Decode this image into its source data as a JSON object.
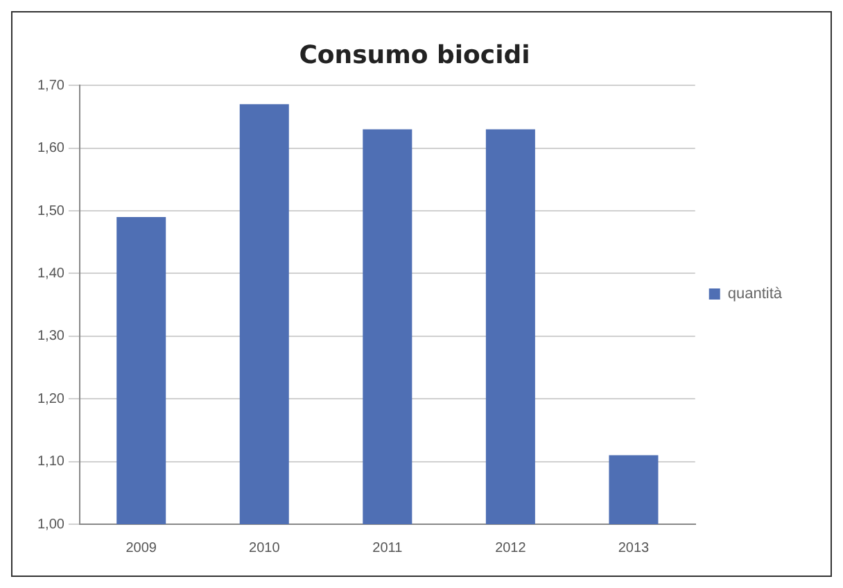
{
  "chart_data": {
    "type": "bar",
    "title": "Consumo biocidi",
    "categories": [
      "2009",
      "2010",
      "2011",
      "2012",
      "2013"
    ],
    "series": [
      {
        "name": "quantità",
        "color": "#4f6fb4",
        "values": [
          1.49,
          1.67,
          1.63,
          1.63,
          1.11
        ]
      }
    ],
    "ylim": [
      1,
      1.7
    ],
    "yticks": [
      {
        "value": 1,
        "label": "1,00"
      },
      {
        "value": 1.1,
        "label": "1,10"
      },
      {
        "value": 1.2,
        "label": "1,20"
      },
      {
        "value": 1.3,
        "label": "1,30"
      },
      {
        "value": 1.4,
        "label": "1,40"
      },
      {
        "value": 1.5,
        "label": "1,50"
      },
      {
        "value": 1.6,
        "label": "1,60"
      },
      {
        "value": 1.7,
        "label": "1,70"
      }
    ],
    "grid": "y",
    "legend": "right"
  }
}
